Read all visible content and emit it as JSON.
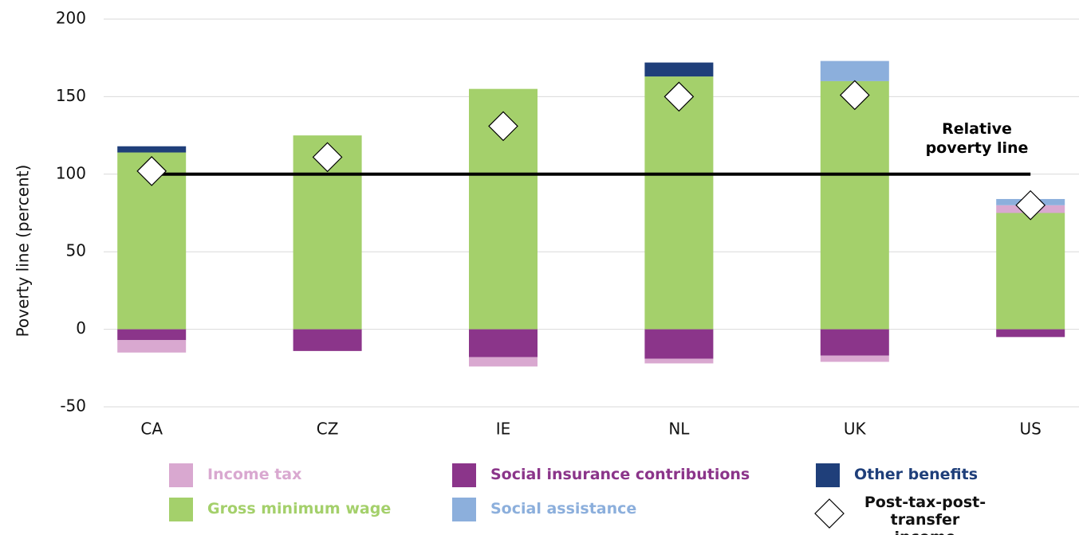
{
  "chart_data": {
    "type": "stacked-bar",
    "y_label": "Poverty line (percent)",
    "categories": [
      "CA",
      "CZ",
      "IE",
      "NL",
      "UK",
      "US"
    ],
    "series": [
      {
        "name": "Income tax",
        "color": "#d9a8d0",
        "values": [
          -8,
          0,
          -6,
          -3,
          -4,
          5
        ]
      },
      {
        "name": "Social insurance contributions",
        "color": "#8b358a",
        "values": [
          -7,
          -14,
          -18,
          -19,
          -17,
          -5
        ]
      },
      {
        "name": "Other benefits",
        "color": "#1f3f7a",
        "values": [
          4,
          0,
          0,
          9,
          0,
          0
        ]
      },
      {
        "name": "Gross minimum wage",
        "color": "#a4d06b",
        "values": [
          114,
          125,
          155,
          163,
          160,
          75
        ]
      },
      {
        "name": "Social assistance",
        "color": "#8cafdc",
        "values": [
          0,
          0,
          0,
          0,
          13,
          4
        ]
      }
    ],
    "markers": {
      "name": "Post-tax-post-transfer income",
      "values": [
        102,
        111,
        131,
        150,
        151,
        80
      ]
    },
    "reference_line": {
      "value": 100,
      "label": "Relative poverty line"
    },
    "ylim": [
      -50,
      200
    ],
    "yticks": [
      -50,
      0,
      50,
      100,
      150,
      200
    ],
    "grid": true
  }
}
